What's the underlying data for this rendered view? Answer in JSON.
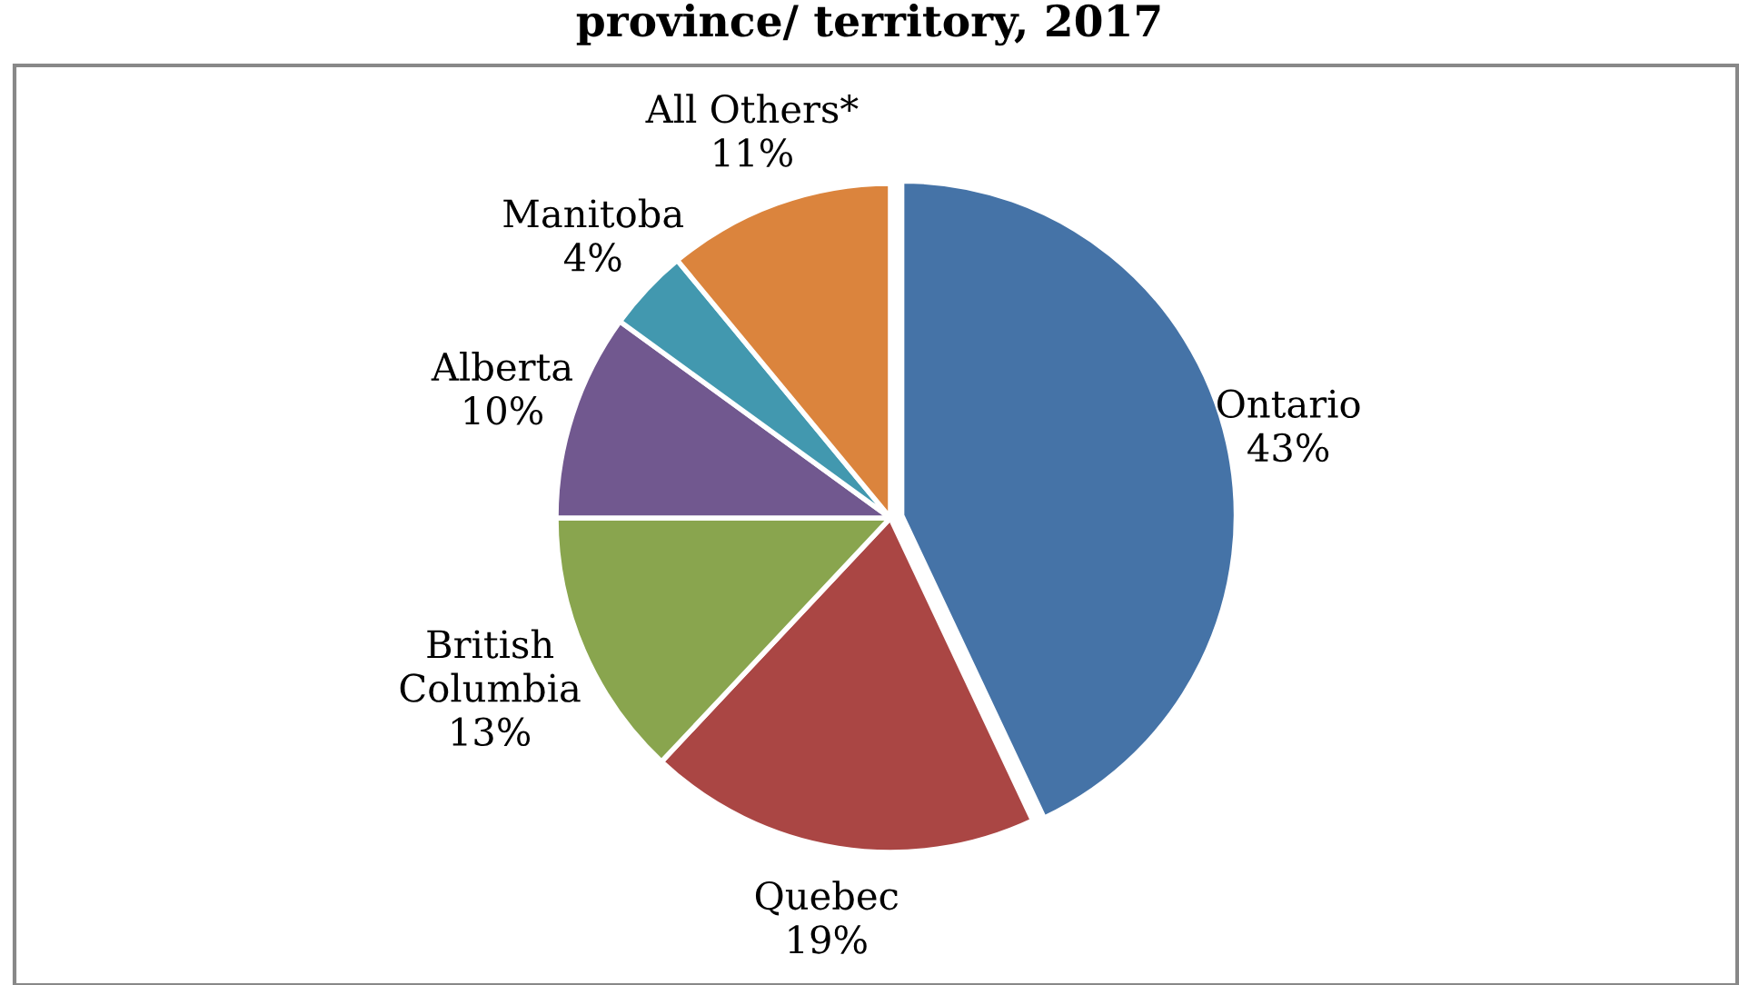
{
  "chart_data": {
    "type": "pie",
    "title": "province/ territory, 2017",
    "categories": [
      "Ontario",
      "Quebec",
      "British Columbia",
      "Alberta",
      "Manitoba",
      "All Others*"
    ],
    "values": [
      43,
      19,
      13,
      10,
      4,
      11
    ],
    "value_labels": [
      "43%",
      "19%",
      "13%",
      "10%",
      "4%",
      "11%"
    ],
    "colors": [
      "#4573a7",
      "#aa4644",
      "#89a54e",
      "#71588f",
      "#4298af",
      "#db843d"
    ],
    "legend": false
  }
}
